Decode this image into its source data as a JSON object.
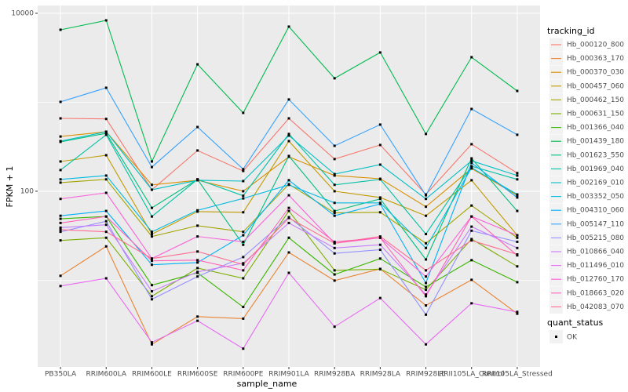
{
  "chart_data": {
    "type": "line",
    "x_label": "sample_name",
    "y_label": "FPKM + 1",
    "log_y": true,
    "grid": true,
    "categories": [
      "PB350LA",
      "RRIM600LA",
      "RRIM600LE",
      "RRIM600SE",
      "RRIM600PE",
      "RRIM901LA",
      "RRIM928BA",
      "RRIM928LA",
      "RRIM928LE",
      "RRII105LA_Control",
      "RRII105LA_Stressed"
    ],
    "ylim": [
      1.06,
      12240
    ],
    "yticks": [
      {
        "value": 100,
        "label": "100"
      },
      {
        "value": 10000,
        "label": "10000"
      }
    ],
    "minor_grid": [
      10,
      1000
    ],
    "legend_title": "tracking_id",
    "shape_legend_title": "quant_status",
    "shape_legend_label": "OK",
    "series": [
      {
        "name": "Hb_000120_800",
        "color": "#F8766D",
        "values": [
          659,
          650,
          104,
          287,
          169,
          659,
          230,
          331,
          92,
          338,
          160
        ]
      },
      {
        "name": "Hb_000363_170",
        "color": "#EA8331",
        "values": [
          11.2,
          24,
          1.9,
          3.9,
          3.7,
          20.5,
          9.9,
          13.4,
          5.2,
          10.1,
          4.2
        ]
      },
      {
        "name": "Hb_000370_030",
        "color": "#D89000",
        "values": [
          412,
          467,
          118,
          133,
          100,
          244,
          150,
          138,
          67,
          180,
          90
        ]
      },
      {
        "name": "Hb_000457_060",
        "color": "#C09B00",
        "values": [
          216,
          254,
          33,
          59,
          58,
          366,
          100,
          85,
          53,
          133,
          32
        ]
      },
      {
        "name": "Hb_000462_150",
        "color": "#A3A500",
        "values": [
          125,
          136,
          31,
          41,
          35,
          120,
          57,
          58,
          26,
          69,
          30
        ]
      },
      {
        "name": "Hb_000631_150",
        "color": "#7CAE00",
        "values": [
          28,
          30,
          6.6,
          13.7,
          10.5,
          60,
          12.9,
          13.3,
          7.8,
          29,
          14.3
        ]
      },
      {
        "name": "Hb_001366_040",
        "color": "#39B600",
        "values": [
          49,
          52,
          8.8,
          12.1,
          5.0,
          30,
          11.6,
          17.5,
          8.4,
          16.8,
          9.5
        ]
      },
      {
        "name": "Hb_001439_180",
        "color": "#00BB4E",
        "values": [
          6530,
          8330,
          216,
          2670,
          760,
          7080,
          1860,
          3630,
          440,
          3210,
          1340
        ]
      },
      {
        "name": "Hb_001623_550",
        "color": "#00BF7D",
        "values": [
          359,
          448,
          65,
          136,
          25,
          249,
          60,
          82,
          17.1,
          234,
          60
        ]
      },
      {
        "name": "Hb_001969_040",
        "color": "#00C1A3",
        "values": [
          173,
          431,
          52,
          136,
          89,
          440,
          118,
          136,
          33,
          191,
          136
        ]
      },
      {
        "name": "Hb_002169_010",
        "color": "#00BFC4",
        "values": [
          366,
          467,
          104,
          133,
          130,
          422,
          156,
          199,
          82,
          220,
          150
        ]
      },
      {
        "name": "Hb_003352_050",
        "color": "#00BAE0",
        "values": [
          136,
          150,
          35,
          61,
          83,
          118,
          74,
          74,
          23,
          184,
          92
        ]
      },
      {
        "name": "Hb_004310_060",
        "color": "#00B0F6",
        "values": [
          53,
          60,
          14.9,
          15.8,
          32,
          133,
          53,
          72,
          9.3,
          208,
          85
        ]
      },
      {
        "name": "Hb_005147_110",
        "color": "#35A2FF",
        "values": [
          1010,
          1455,
          187,
          527,
          177,
          1075,
          324,
          561,
          90,
          841,
          431
        ]
      },
      {
        "name": "Hb_005215_080",
        "color": "#9590FF",
        "values": [
          35,
          46,
          6.1,
          11,
          18.2,
          51,
          20,
          22,
          4.1,
          36,
          27
        ]
      },
      {
        "name": "Hb_010866_040",
        "color": "#C77CFF",
        "values": [
          39,
          42,
          7.5,
          12.4,
          15.5,
          44,
          23,
          25,
          6.9,
          40,
          23
        ]
      },
      {
        "name": "Hb_011496_010",
        "color": "#E76BF3",
        "values": [
          8.6,
          10.5,
          2.0,
          3.5,
          1.7,
          12.1,
          3.0,
          6.3,
          1.9,
          5.5,
          4.4
        ]
      },
      {
        "name": "Hb_012760_170",
        "color": "#FA62DB",
        "values": [
          82,
          96,
          17.5,
          31,
          27,
          90,
          26,
          30,
          11,
          52,
          32
        ]
      },
      {
        "name": "Hb_018663_020",
        "color": "#FF62BC",
        "values": [
          44,
          52,
          16.5,
          16.8,
          12.9,
          65,
          27,
          30,
          6.6,
          52,
          19
        ]
      },
      {
        "name": "Hb_042083_070",
        "color": "#FF6C91",
        "values": [
          37,
          35,
          17.5,
          21,
          15,
          50,
          26,
          31,
          12.9,
          28,
          19.5
        ]
      }
    ]
  }
}
